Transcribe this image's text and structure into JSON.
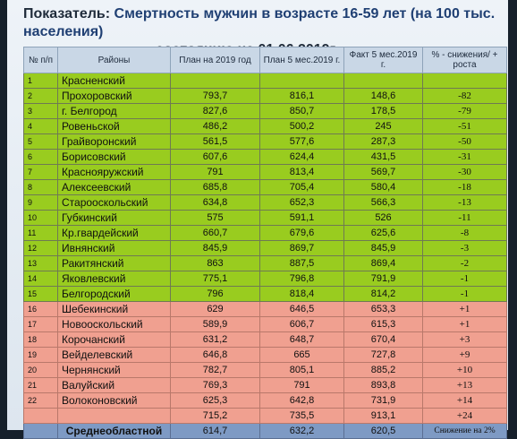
{
  "title": {
    "prefix": "Показатель:",
    "main": "Смертность мужчин в возрасте 16-59 лет (на 100 тыс. населения)",
    "line2": "состоянию на 01.06.2019г."
  },
  "table": {
    "headers": [
      "№ п/п",
      "Районы",
      "План на 2019 год",
      "План 5 мес.2019 г.",
      "Факт 5 мес.2019 г.",
      "% - снижения/ + роста"
    ],
    "rows": [
      {
        "n": "1",
        "name": "Красненский",
        "plan_year": "",
        "plan_5m": "",
        "fact_5m": "",
        "pct": ""
      },
      {
        "n": "2",
        "name": "Прохоровский",
        "plan_year": "793,7",
        "plan_5m": "816,1",
        "fact_5m": "148,6",
        "pct": "-82"
      },
      {
        "n": "3",
        "name": "г. Белгород",
        "plan_year": "827,6",
        "plan_5m": "850,7",
        "fact_5m": "178,5",
        "pct": "-79"
      },
      {
        "n": "4",
        "name": "Ровеньской",
        "plan_year": "486,2",
        "plan_5m": "500,2",
        "fact_5m": "245",
        "pct": "-51"
      },
      {
        "n": "5",
        "name": "Грайворонский",
        "plan_year": "561,5",
        "plan_5m": "577,6",
        "fact_5m": "287,3",
        "pct": "-50"
      },
      {
        "n": "6",
        "name": "Борисовский",
        "plan_year": "607,6",
        "plan_5m": "624,4",
        "fact_5m": "431,5",
        "pct": "-31"
      },
      {
        "n": "7",
        "name": "Краснояружский",
        "plan_year": "791",
        "plan_5m": "813,4",
        "fact_5m": "569,7",
        "pct": "-30"
      },
      {
        "n": "8",
        "name": "Алексеевский",
        "plan_year": "685,8",
        "plan_5m": "705,4",
        "fact_5m": "580,4",
        "pct": "-18"
      },
      {
        "n": "9",
        "name": "Старооскольский",
        "plan_year": "634,8",
        "plan_5m": "652,3",
        "fact_5m": "566,3",
        "pct": "-13"
      },
      {
        "n": "10",
        "name": "Губкинский",
        "plan_year": "575",
        "plan_5m": "591,1",
        "fact_5m": "526",
        "pct": "-11"
      },
      {
        "n": "11",
        "name": "Кр.гвардейский",
        "plan_year": "660,7",
        "plan_5m": "679,6",
        "fact_5m": "625,6",
        "pct": "-8"
      },
      {
        "n": "12",
        "name": "Ивнянский",
        "plan_year": "845,9",
        "plan_5m": "869,7",
        "fact_5m": "845,9",
        "pct": "-3"
      },
      {
        "n": "13",
        "name": "Ракитянский",
        "plan_year": "863",
        "plan_5m": "887,5",
        "fact_5m": "869,4",
        "pct": "-2"
      },
      {
        "n": "14",
        "name": "Яковлевский",
        "plan_year": "775,1",
        "plan_5m": "796,8",
        "fact_5m": "791,9",
        "pct": "-1"
      },
      {
        "n": "15",
        "name": "Белгородский",
        "plan_year": "796",
        "plan_5m": "818,4",
        "fact_5m": "814,2",
        "pct": "-1"
      },
      {
        "n": "16",
        "name": "Шебекинский",
        "plan_year": "629",
        "plan_5m": "646,5",
        "fact_5m": "653,3",
        "pct": "+1"
      },
      {
        "n": "17",
        "name": "Новооскольский",
        "plan_year": "589,9",
        "plan_5m": "606,7",
        "fact_5m": "615,3",
        "pct": "+1"
      },
      {
        "n": "18",
        "name": "Корочанский",
        "plan_year": "631,2",
        "plan_5m": "648,7",
        "fact_5m": "670,4",
        "pct": "+3"
      },
      {
        "n": "19",
        "name": "Вейделевский",
        "plan_year": "646,8",
        "plan_5m": "665",
        "fact_5m": "727,8",
        "pct": "+9"
      },
      {
        "n": "20",
        "name": "Чернянский",
        "plan_year": "782,7",
        "plan_5m": "805,1",
        "fact_5m": "885,2",
        "pct": "+10"
      },
      {
        "n": "21",
        "name": "Валуйский",
        "plan_year": "769,3",
        "plan_5m": "791",
        "fact_5m": "893,8",
        "pct": "+13"
      },
      {
        "n": "22",
        "name": "Волоконовский",
        "plan_year": "625,3",
        "plan_5m": "642,8",
        "fact_5m": "731,9",
        "pct": "+14"
      },
      {
        "n": "",
        "name": "",
        "plan_year": "715,2",
        "plan_5m": "735,5",
        "fact_5m": "913,1",
        "pct": "+24"
      }
    ],
    "total": {
      "name": "Среднеобластной",
      "plan_year": "614,7",
      "plan_5m": "632,2",
      "fact_5m": "620,5",
      "pct": "Снижение на 2%"
    },
    "colors": {
      "decrease": "#99cc1f",
      "increase": "#f0a090",
      "total": "#7e9ac4",
      "header": "#c9d7e6"
    }
  }
}
